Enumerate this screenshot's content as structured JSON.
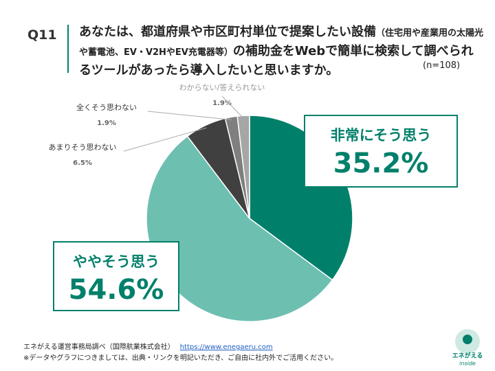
{
  "header": {
    "question": "Q11",
    "title": [
      "あなたは、都道府県や市区町村単位で提案したい設備",
      "（住宅用や産業用の太陽光や蓄電池、EV・V2HやEV充電器等）",
      "の補助金をWebで簡単に検索して調べられるツールがあったら導入したいと思いますか。"
    ],
    "sample": "(n=108)"
  },
  "chart_data": {
    "type": "pie",
    "categories": [
      "非常にそう思う",
      "ややそう思う",
      "あまりそう思わない",
      "全くそう思わない",
      "わからない/答えられない"
    ],
    "values": [
      35.2,
      54.6,
      6.5,
      1.9,
      1.9
    ],
    "value_labels": [
      "35.2%",
      "54.6%",
      "6.5%",
      "1.9%",
      "1.9%"
    ],
    "colors": [
      "#00806a",
      "#6dbfb0",
      "#404040",
      "#7f7f7f",
      "#a6a6a6"
    ]
  },
  "footer": {
    "source": "エネがえる運営事務局調べ（国際航業株式会社）",
    "url": "https://www.enegaeru.com",
    "note": "※データやグラフにつきましては、出典・リンクを明記いただき、ご自由に社内外でご活用ください。",
    "logo": "エネがえる",
    "logo_sub": "inside"
  }
}
